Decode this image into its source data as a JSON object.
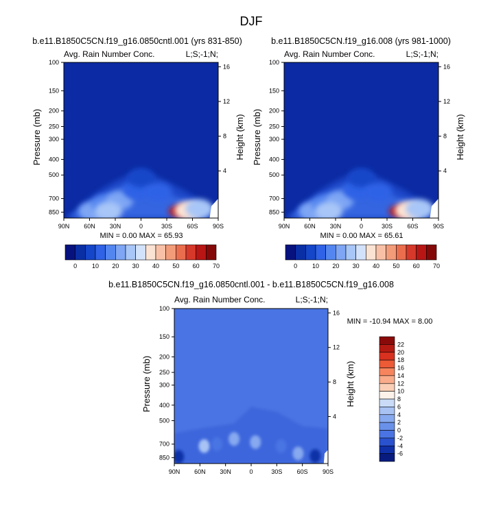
{
  "page": {
    "title": "DJF"
  },
  "chart_data": [
    {
      "type": "heatmap",
      "title": "b.e11.B1850C5CN.f19_g16.0850cntl.001 (yrs 831-850)",
      "subtitle_left": "Avg. Rain Number Conc.",
      "subtitle_right": "L;S;-1;N;",
      "xlabel": "",
      "ylabel": "Pressure (mb)",
      "ylabel_right": "Height (km)",
      "x_ticks": [
        "90N",
        "60N",
        "30N",
        "0",
        "30S",
        "60S",
        "90S"
      ],
      "y_ticks": [
        "100",
        "150",
        "200",
        "250",
        "300",
        "400",
        "500",
        "700",
        "850"
      ],
      "y_ticks_right": [
        "16",
        "12",
        "8",
        "4"
      ],
      "stats": "MIN =  0.00  MAX = 65.93",
      "colorbar": {
        "labels": [
          "0",
          "10",
          "20",
          "30",
          "40",
          "50",
          "60",
          "70"
        ],
        "colors": [
          "#08127e",
          "#0a2fa5",
          "#1546c9",
          "#2f62e6",
          "#5486f0",
          "#7ea6f4",
          "#a8c6f7",
          "#d2e2fa",
          "#fbe3d4",
          "#f8c1a7",
          "#f39c7a",
          "#ea6e4e",
          "#d6382a",
          "#b81515",
          "#850808"
        ]
      },
      "blobs": [
        {
          "lat": 57,
          "p": 840,
          "value": 24
        },
        {
          "lat": 42,
          "p": 760,
          "value": 20
        },
        {
          "lat": 25,
          "p": 720,
          "value": 27
        },
        {
          "lat": 38,
          "p": 840,
          "value": 28
        },
        {
          "lat": 5,
          "p": 620,
          "value": 14
        },
        {
          "lat": 0,
          "p": 520,
          "value": 12
        },
        {
          "lat": -20,
          "p": 640,
          "value": 14
        },
        {
          "lat": -45,
          "p": 840,
          "value": 65
        },
        {
          "lat": -55,
          "p": 830,
          "value": 40
        },
        {
          "lat": -68,
          "p": 810,
          "value": 30
        }
      ]
    },
    {
      "type": "heatmap",
      "title": "b.e11.B1850C5CN.f19_g16.008 (yrs 981-1000)",
      "subtitle_left": "Avg. Rain Number Conc.",
      "subtitle_right": "L;S;-1;N;",
      "xlabel": "",
      "ylabel": "Pressure (mb)",
      "ylabel_right": "Height (km)",
      "x_ticks": [
        "90N",
        "60N",
        "30N",
        "0",
        "30S",
        "60S",
        "90S"
      ],
      "y_ticks": [
        "100",
        "150",
        "200",
        "250",
        "300",
        "400",
        "500",
        "700",
        "850"
      ],
      "y_ticks_right": [
        "16",
        "12",
        "8",
        "4"
      ],
      "stats": "MIN =  0.00  MAX = 65.61",
      "colorbar": {
        "labels": [
          "0",
          "10",
          "20",
          "30",
          "40",
          "50",
          "60",
          "70"
        ],
        "colors": [
          "#08127e",
          "#0a2fa5",
          "#1546c9",
          "#2f62e6",
          "#5486f0",
          "#7ea6f4",
          "#a8c6f7",
          "#d2e2fa",
          "#fbe3d4",
          "#f8c1a7",
          "#f39c7a",
          "#ea6e4e",
          "#d6382a",
          "#b81515",
          "#850808"
        ]
      },
      "blobs": [
        {
          "lat": 57,
          "p": 840,
          "value": 24
        },
        {
          "lat": 42,
          "p": 760,
          "value": 20
        },
        {
          "lat": 25,
          "p": 720,
          "value": 27
        },
        {
          "lat": 38,
          "p": 840,
          "value": 28
        },
        {
          "lat": 5,
          "p": 620,
          "value": 14
        },
        {
          "lat": 0,
          "p": 520,
          "value": 12
        },
        {
          "lat": -20,
          "p": 640,
          "value": 14
        },
        {
          "lat": -45,
          "p": 840,
          "value": 65
        },
        {
          "lat": -55,
          "p": 830,
          "value": 40
        },
        {
          "lat": -68,
          "p": 810,
          "value": 30
        }
      ]
    },
    {
      "type": "heatmap",
      "title": "b.e11.B1850C5CN.f19_g16.0850cntl.001 - b.e11.B1850C5CN.f19_g16.008",
      "subtitle_left": "Avg. Rain Number Conc.",
      "subtitle_right": "L;S;-1;N;",
      "xlabel": "",
      "ylabel": "Pressure (mb)",
      "ylabel_right": "Height (km)",
      "x_ticks": [
        "90N",
        "60N",
        "30N",
        "0",
        "30S",
        "60S",
        "90S"
      ],
      "y_ticks": [
        "100",
        "150",
        "200",
        "250",
        "300",
        "400",
        "500",
        "700",
        "850"
      ],
      "y_ticks_right": [
        "16",
        "12",
        "8",
        "4"
      ],
      "stats": "MIN = -10.94  MAX =   8.00",
      "colorbar": {
        "labels": [
          "22",
          "20",
          "18",
          "16",
          "14",
          "12",
          "10",
          "8",
          "6",
          "4",
          "2",
          "0",
          "-2",
          "-4",
          "-6"
        ],
        "colors": [
          "#8a0a0a",
          "#b51a12",
          "#d8311f",
          "#ec5a36",
          "#f6855e",
          "#f9ab8a",
          "#fbcfb6",
          "#fdf2ea",
          "#c9dbf7",
          "#a8c2f4",
          "#87a9ef",
          "#6a91ea",
          "#4a74e3",
          "#2a52cf",
          "#1030a8",
          "#081c80"
        ]
      },
      "blobs": [
        {
          "lat": 85,
          "p": 840,
          "value": -6
        },
        {
          "lat": 55,
          "p": 720,
          "value": 4
        },
        {
          "lat": 40,
          "p": 700,
          "value": -2
        },
        {
          "lat": 20,
          "p": 650,
          "value": 2
        },
        {
          "lat": -5,
          "p": 680,
          "value": 2
        },
        {
          "lat": -35,
          "p": 720,
          "value": -2
        },
        {
          "lat": -55,
          "p": 800,
          "value": 3
        },
        {
          "lat": -75,
          "p": 830,
          "value": -5
        }
      ]
    }
  ]
}
